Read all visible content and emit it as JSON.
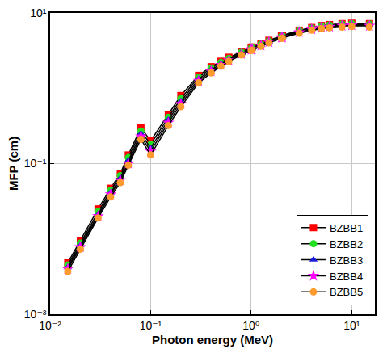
{
  "chart_data": {
    "type": "line",
    "log": true,
    "grid": true,
    "legend": "lower right",
    "marker": "filled",
    "line_style": "solid",
    "x_label": "Photon energy (MeV)",
    "y_label": "MFP (cm)",
    "xlim": [
      0.01,
      17
    ],
    "ylim": [
      0.001,
      10
    ],
    "xticks": [
      {
        "value": 0.01,
        "label": "10⁻²"
      },
      {
        "value": 0.1,
        "label": "10⁻¹"
      },
      {
        "value": 1,
        "label": "10⁰"
      },
      {
        "value": 10,
        "label": "10¹"
      }
    ],
    "yticks": [
      {
        "value": 0.001,
        "label": "10⁻³"
      },
      {
        "value": 0.1,
        "label": "10⁻¹"
      },
      {
        "value": 10,
        "label": "10¹"
      }
    ],
    "x": [
      0.015,
      0.02,
      0.03,
      0.04,
      0.05,
      0.06,
      0.08,
      0.1,
      0.15,
      0.2,
      0.3,
      0.4,
      0.5,
      0.6,
      0.8,
      1,
      1.022,
      1.25,
      1.5,
      2,
      2.044,
      3,
      4,
      5,
      6,
      8,
      10,
      15
    ],
    "series": [
      {
        "name": "BZBB1",
        "color": "#ff0000",
        "marker": "square",
        "values": [
          0.0048,
          0.0094,
          0.025,
          0.047,
          0.074,
          0.13,
          0.3,
          0.2,
          0.45,
          0.8,
          1.48,
          1.93,
          2.28,
          2.58,
          3.08,
          3.48,
          3.53,
          3.93,
          4.33,
          4.98,
          5.03,
          5.9,
          6.4,
          6.8,
          7.0,
          7.2,
          7.3,
          7.2
        ]
      },
      {
        "name": "BZBB2",
        "color": "#22e022",
        "marker": "circle",
        "values": [
          0.0045,
          0.0088,
          0.023,
          0.044,
          0.069,
          0.12,
          0.27,
          0.18,
          0.41,
          0.73,
          1.4,
          1.85,
          2.2,
          2.5,
          3.0,
          3.4,
          3.45,
          3.85,
          4.25,
          4.9,
          4.95,
          5.8,
          6.3,
          6.7,
          6.9,
          7.1,
          7.2,
          7.1
        ]
      },
      {
        "name": "BZBB3",
        "color": "#1a1adc",
        "marker": "triangle",
        "values": [
          0.0042,
          0.0082,
          0.021,
          0.041,
          0.064,
          0.11,
          0.25,
          0.16,
          0.38,
          0.67,
          1.32,
          1.76,
          2.12,
          2.42,
          2.92,
          3.32,
          3.37,
          3.77,
          4.17,
          4.8,
          4.85,
          5.7,
          6.2,
          6.55,
          6.75,
          6.95,
          7.05,
          6.95
        ]
      },
      {
        "name": "BZBB4",
        "color": "#ff00ff",
        "marker": "star",
        "values": [
          0.004,
          0.0078,
          0.02,
          0.039,
          0.06,
          0.1,
          0.23,
          0.145,
          0.35,
          0.62,
          1.25,
          1.68,
          2.04,
          2.35,
          2.85,
          3.25,
          3.3,
          3.7,
          4.1,
          4.7,
          4.75,
          5.55,
          6.05,
          6.4,
          6.55,
          6.75,
          6.85,
          6.75
        ]
      },
      {
        "name": "BZBB5",
        "color": "#ff9a2e",
        "marker": "circle",
        "values": [
          0.0037,
          0.0073,
          0.019,
          0.036,
          0.056,
          0.095,
          0.21,
          0.13,
          0.32,
          0.57,
          1.18,
          1.6,
          1.96,
          2.27,
          2.77,
          3.17,
          3.22,
          3.6,
          4.0,
          4.6,
          4.65,
          5.4,
          5.9,
          6.2,
          6.35,
          6.5,
          6.6,
          6.5
        ]
      }
    ]
  }
}
